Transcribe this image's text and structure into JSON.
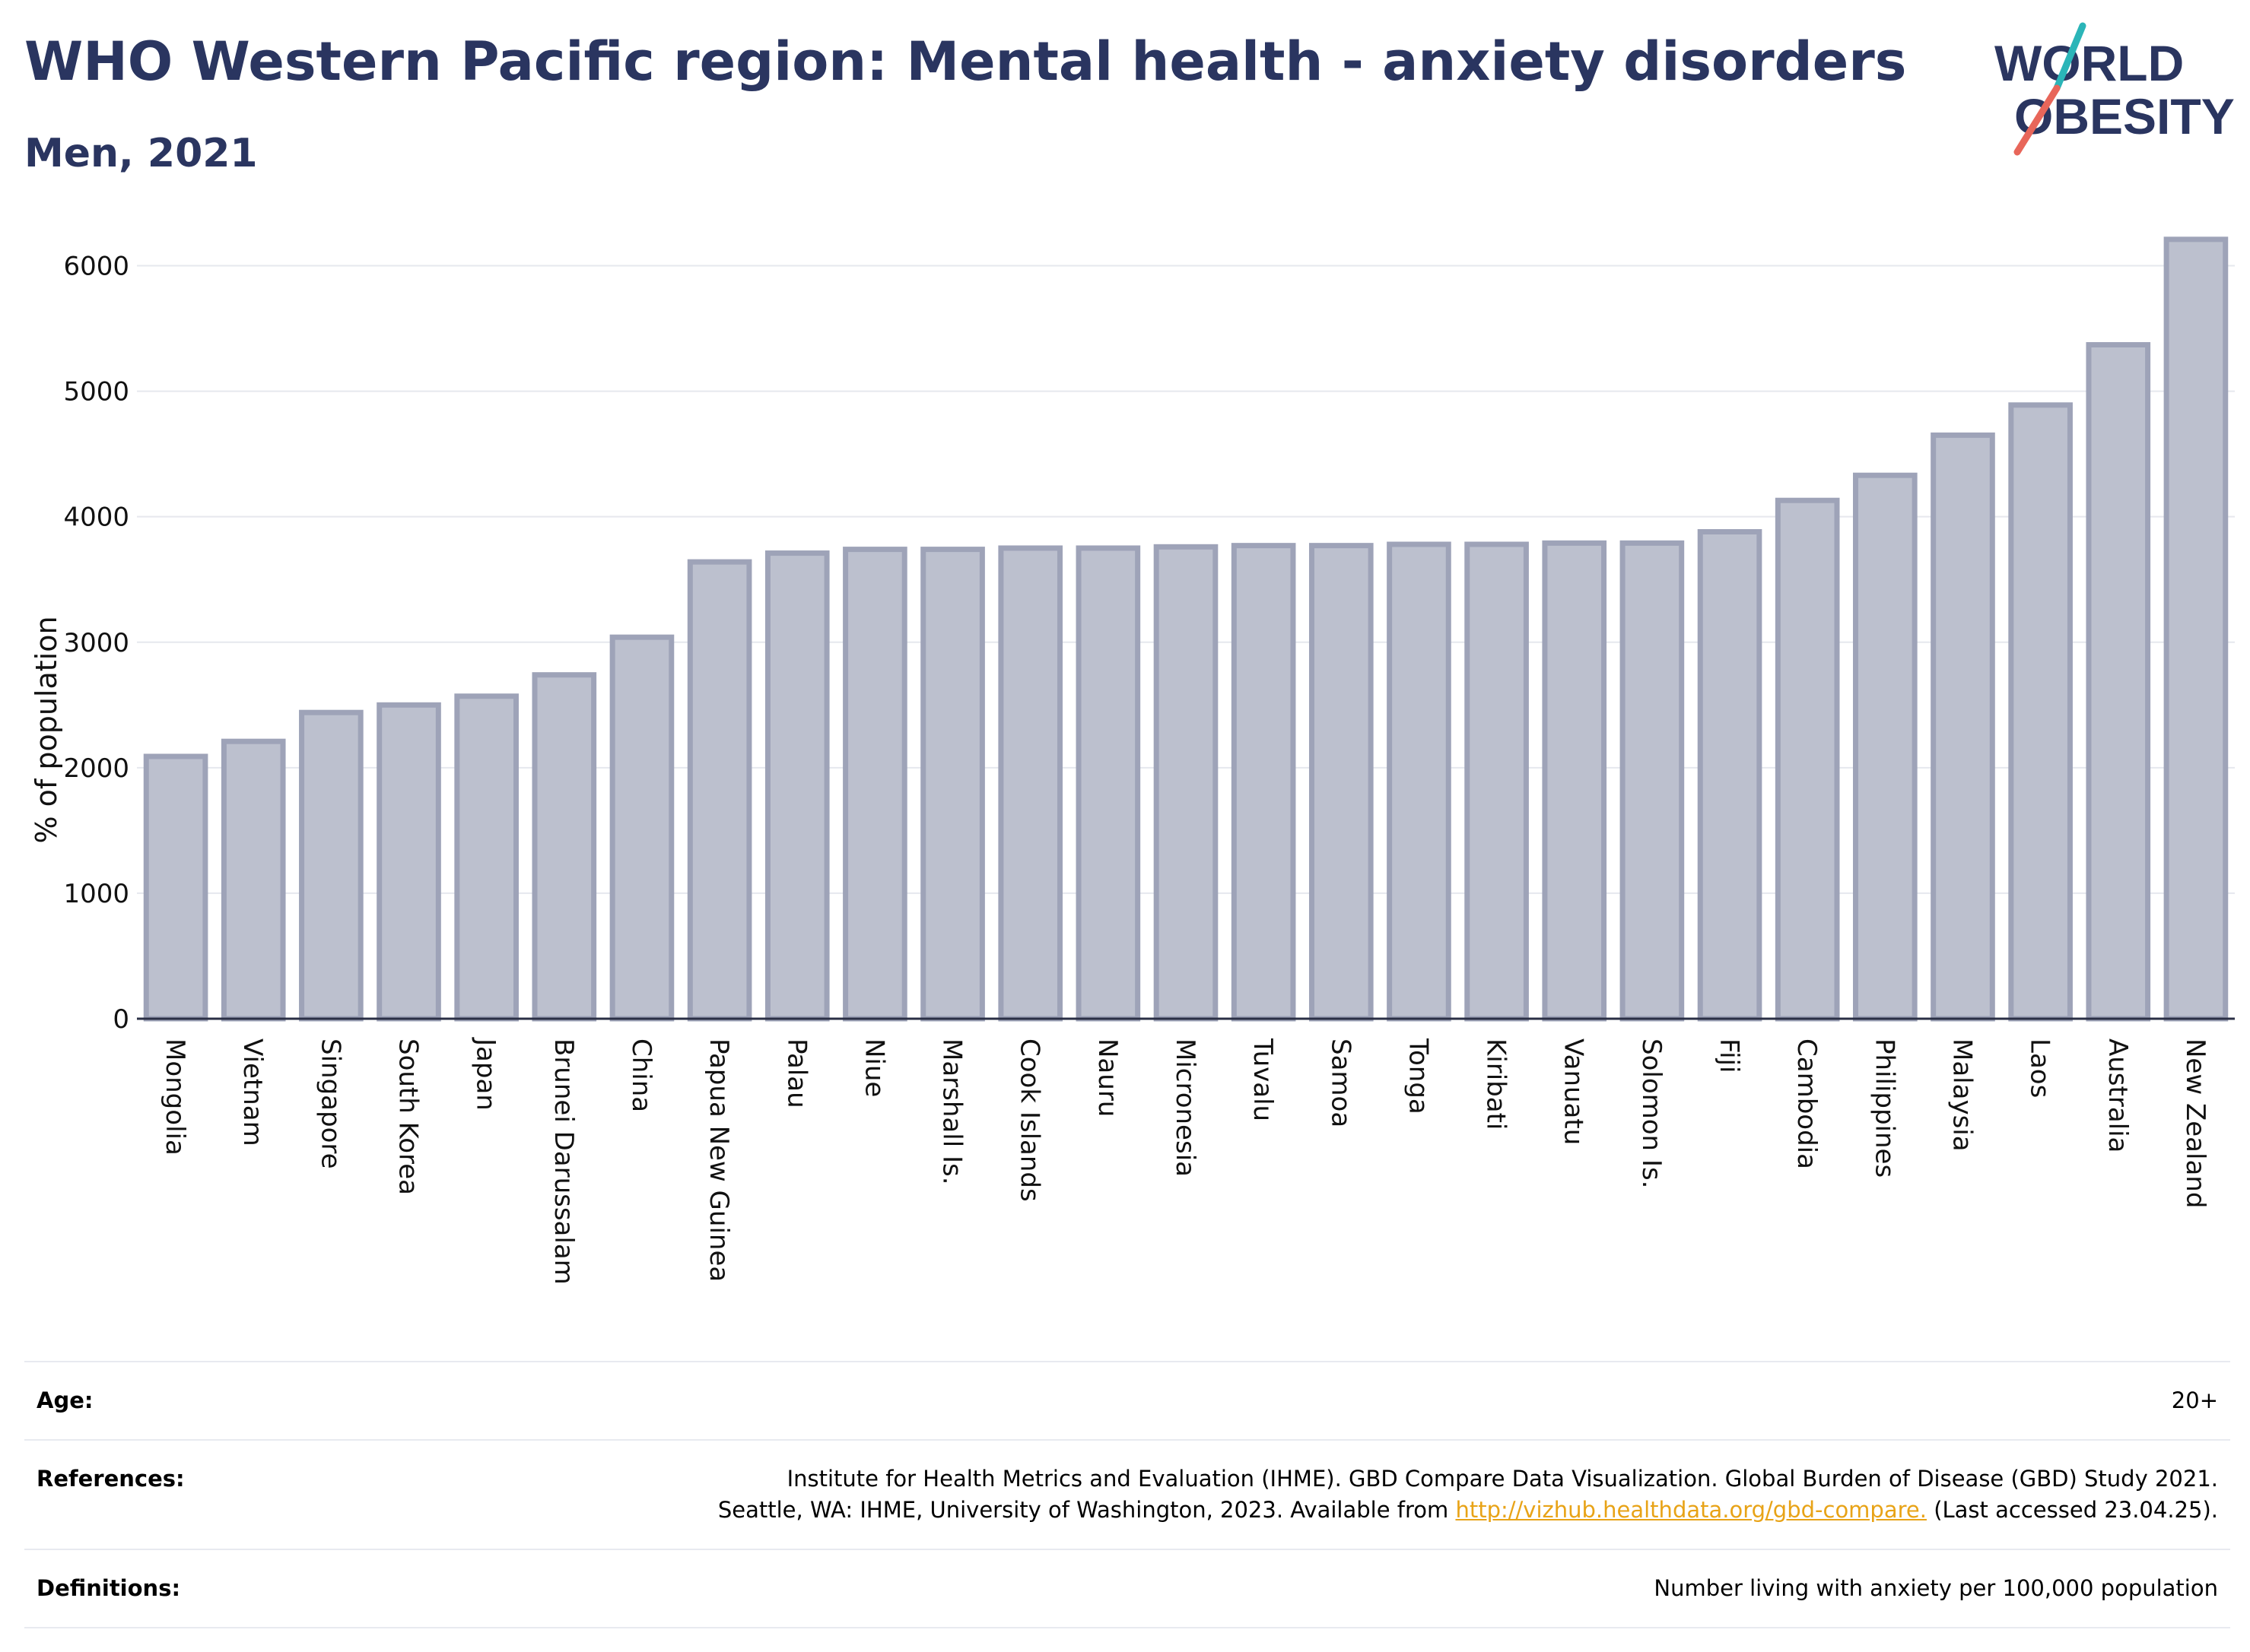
{
  "header": {
    "title": "WHO Western Pacific region: Mental health - anxiety disorders",
    "subtitle": "Men, 2021"
  },
  "logo": {
    "line1": "WORLD",
    "line2": "OBESITY",
    "colors": {
      "text": "#2a3560",
      "slash_top": "#2bb5b8",
      "slash_bottom": "#e8665a"
    }
  },
  "chart_data": {
    "type": "bar",
    "ylabel": "% of population",
    "ylim": [
      0,
      6300
    ],
    "yticks": [
      0,
      1000,
      2000,
      3000,
      4000,
      5000,
      6000
    ],
    "grid": true,
    "bar_fill": "#bcc0ce",
    "bar_stroke": "#9ea3b8",
    "categories": [
      "Mongolia",
      "Vietnam",
      "Singapore",
      "South Korea",
      "Japan",
      "Brunei Darussalam",
      "China",
      "Papua New Guinea",
      "Palau",
      "Niue",
      "Marshall Is.",
      "Cook Islands",
      "Nauru",
      "Micronesia",
      "Tuvalu",
      "Samoa",
      "Tonga",
      "Kiribati",
      "Vanuatu",
      "Solomon Is.",
      "Fiji",
      "Cambodia",
      "Philippines",
      "Malaysia",
      "Laos",
      "Australia",
      "New Zealand"
    ],
    "values": [
      2090,
      2210,
      2440,
      2500,
      2570,
      2740,
      3040,
      3640,
      3710,
      3740,
      3740,
      3750,
      3750,
      3760,
      3770,
      3770,
      3780,
      3780,
      3790,
      3790,
      3880,
      4130,
      4330,
      4650,
      4890,
      5370,
      6210
    ]
  },
  "info": {
    "age_label": "Age:",
    "age_value": "20+",
    "references_label": "References:",
    "references_text_1": "Institute for Health Metrics and Evaluation (IHME). GBD Compare Data Visualization. Global Burden of Disease (GBD) Study 2021.",
    "references_text_2": "Seattle, WA: IHME, University of Washington, 2023. Available from",
    "references_link": "http://vizhub.healthdata.org/gbd-compare.",
    "references_text_3": "(Last accessed 23.04.25).",
    "definitions_label": "Definitions:",
    "definitions_value": "Number living with anxiety per 100,000 population"
  }
}
